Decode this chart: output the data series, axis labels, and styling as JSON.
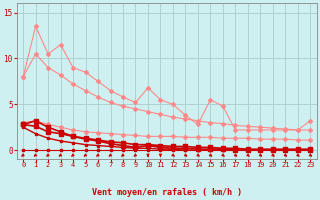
{
  "background_color": "#cff0f0",
  "grid_color": "#aacccc",
  "xlabel": "Vent moyen/en rafales ( km/h )",
  "xlabel_color": "#cc0000",
  "tick_color": "#cc0000",
  "xlim": [
    -0.5,
    23.5
  ],
  "ylim": [
    -1.0,
    16.0
  ],
  "yticks": [
    0,
    5,
    10,
    15
  ],
  "xticks": [
    0,
    1,
    2,
    3,
    4,
    5,
    6,
    7,
    8,
    9,
    10,
    11,
    12,
    13,
    14,
    15,
    16,
    17,
    18,
    19,
    20,
    21,
    22,
    23
  ],
  "lines": [
    {
      "color": "#ff8888",
      "lw": 0.8,
      "marker": "D",
      "ms": 2.0,
      "y": [
        8.0,
        13.5,
        10.5,
        11.5,
        9.0,
        8.5,
        7.5,
        6.5,
        5.8,
        5.2,
        6.8,
        5.5,
        5.0,
        3.8,
        2.8,
        5.5,
        4.8,
        2.2,
        2.2,
        2.2,
        2.2,
        2.2,
        2.2,
        3.2
      ]
    },
    {
      "color": "#ff8888",
      "lw": 0.8,
      "marker": "D",
      "ms": 2.0,
      "y": [
        8.0,
        10.5,
        9.0,
        8.2,
        7.2,
        6.5,
        5.8,
        5.2,
        4.8,
        4.5,
        4.2,
        3.9,
        3.6,
        3.4,
        3.2,
        3.0,
        2.9,
        2.7,
        2.6,
        2.5,
        2.4,
        2.3,
        2.2,
        2.2
      ]
    },
    {
      "color": "#ff8888",
      "lw": 0.8,
      "marker": "D",
      "ms": 2.0,
      "y": [
        3.0,
        3.2,
        2.8,
        2.5,
        2.2,
        2.0,
        1.9,
        1.8,
        1.7,
        1.6,
        1.5,
        1.5,
        1.5,
        1.4,
        1.4,
        1.4,
        1.3,
        1.3,
        1.3,
        1.2,
        1.2,
        1.2,
        1.1,
        1.1
      ]
    },
    {
      "color": "#cc0000",
      "lw": 1.2,
      "marker": "s",
      "ms": 2.2,
      "y": [
        2.8,
        3.2,
        2.5,
        2.0,
        1.5,
        1.2,
        1.0,
        0.7,
        0.5,
        0.3,
        0.5,
        0.3,
        0.2,
        0.2,
        0.1,
        0.1,
        0.1,
        0.0,
        0.0,
        0.0,
        0.0,
        0.0,
        0.0,
        0.0
      ]
    },
    {
      "color": "#cc0000",
      "lw": 1.2,
      "marker": "s",
      "ms": 2.2,
      "y": [
        2.8,
        2.6,
        2.0,
        1.8,
        1.5,
        1.3,
        1.1,
        0.9,
        0.8,
        0.6,
        0.6,
        0.5,
        0.4,
        0.4,
        0.3,
        0.3,
        0.2,
        0.2,
        0.1,
        0.1,
        0.1,
        0.1,
        0.1,
        0.1
      ]
    },
    {
      "color": "#cc0000",
      "lw": 1.0,
      "marker": "s",
      "ms": 2.0,
      "y": [
        2.5,
        1.8,
        1.3,
        1.0,
        0.8,
        0.6,
        0.5,
        0.4,
        0.3,
        0.2,
        0.2,
        0.1,
        0.1,
        0.0,
        0.0,
        0.0,
        0.0,
        0.0,
        0.0,
        0.0,
        0.0,
        0.0,
        0.0,
        0.0
      ]
    },
    {
      "color": "#cc0000",
      "lw": 0.8,
      "marker": "s",
      "ms": 2.0,
      "y": [
        0.0,
        0.0,
        0.0,
        0.0,
        0.0,
        0.0,
        0.0,
        0.0,
        0.0,
        0.0,
        0.0,
        0.0,
        0.0,
        0.0,
        0.0,
        0.0,
        0.0,
        0.0,
        0.0,
        0.0,
        0.0,
        0.0,
        0.0,
        0.0
      ]
    }
  ]
}
